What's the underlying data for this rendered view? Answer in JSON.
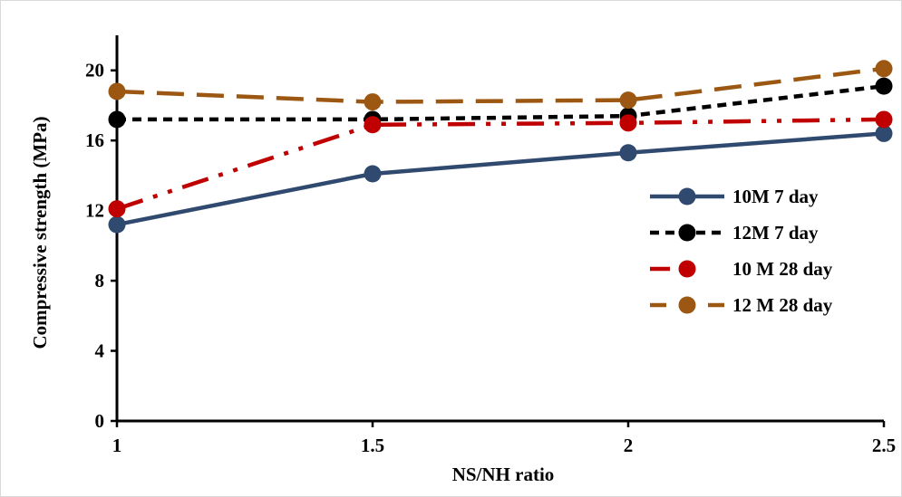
{
  "chart_data": {
    "type": "line",
    "title": "",
    "xlabel": "NS/NH ratio",
    "ylabel": "Compressive strength (MPa)",
    "x": [
      1,
      1.5,
      2,
      2.5
    ],
    "x_tick_labels": [
      "1",
      "1.5",
      "2",
      "2.5"
    ],
    "ylim": [
      0,
      22
    ],
    "y_ticks": [
      0,
      4,
      8,
      12,
      16,
      20
    ],
    "y_tick_labels": [
      "0",
      "4",
      "8",
      "12",
      "16",
      "20"
    ],
    "grid": false,
    "legend_position": "right",
    "series": [
      {
        "name": "10M 7 day",
        "values": [
          11.2,
          14.1,
          15.3,
          16.4
        ],
        "color": "#2f4a6e",
        "dash": "solid"
      },
      {
        "name": "12M 7 day",
        "values": [
          17.2,
          17.2,
          17.4,
          19.1
        ],
        "color": "#000000",
        "dash": "short-dash"
      },
      {
        "name": "10 M 28 day",
        "values": [
          12.1,
          16.9,
          17.0,
          17.2
        ],
        "color": "#c00000",
        "dash": "long-dash-dot-dot"
      },
      {
        "name": "12 M 28 day",
        "values": [
          18.8,
          18.2,
          18.3,
          20.1
        ],
        "color": "#9c5812",
        "dash": "long-dash"
      }
    ]
  }
}
